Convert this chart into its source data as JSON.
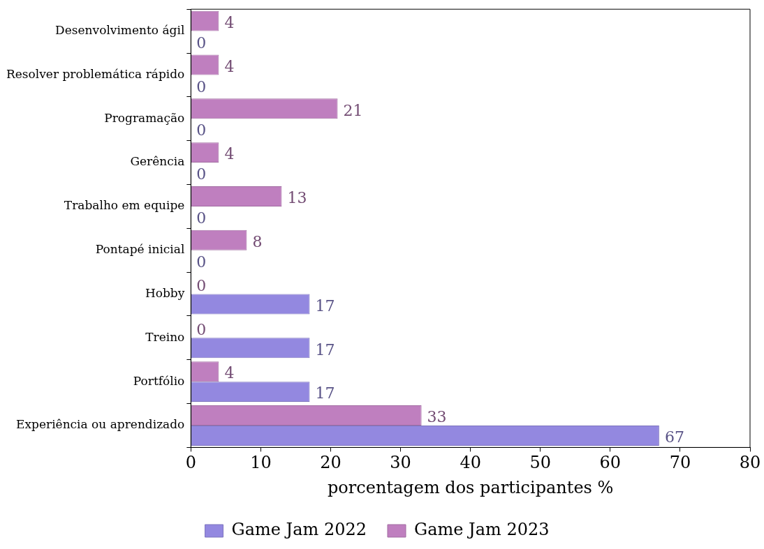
{
  "chart_data": {
    "type": "bar",
    "orientation": "horizontal",
    "categories": [
      "Desenvolvimento ágil",
      "Resolver problemática rápido",
      "Programação",
      "Gerência",
      "Trabalho em equipe",
      "Pontapé inicial",
      "Hobby",
      "Treino",
      "Portfólio",
      "Experiência ou aprendizado"
    ],
    "series": [
      {
        "name": "Game Jam 2022",
        "color": "#9388e0",
        "values": [
          0,
          0,
          0,
          0,
          0,
          0,
          17,
          17,
          17,
          67
        ]
      },
      {
        "name": "Game Jam 2023",
        "color": "#bf7fbf",
        "values": [
          4,
          4,
          21,
          4,
          13,
          8,
          0,
          0,
          4,
          33
        ]
      }
    ],
    "xlabel": "porcentagem dos participantes %",
    "xlim": [
      0,
      80
    ],
    "xticks": [
      0,
      10,
      20,
      30,
      40,
      50,
      60,
      70,
      80
    ],
    "data_labels": true,
    "legend": "bottom",
    "grid": false
  }
}
